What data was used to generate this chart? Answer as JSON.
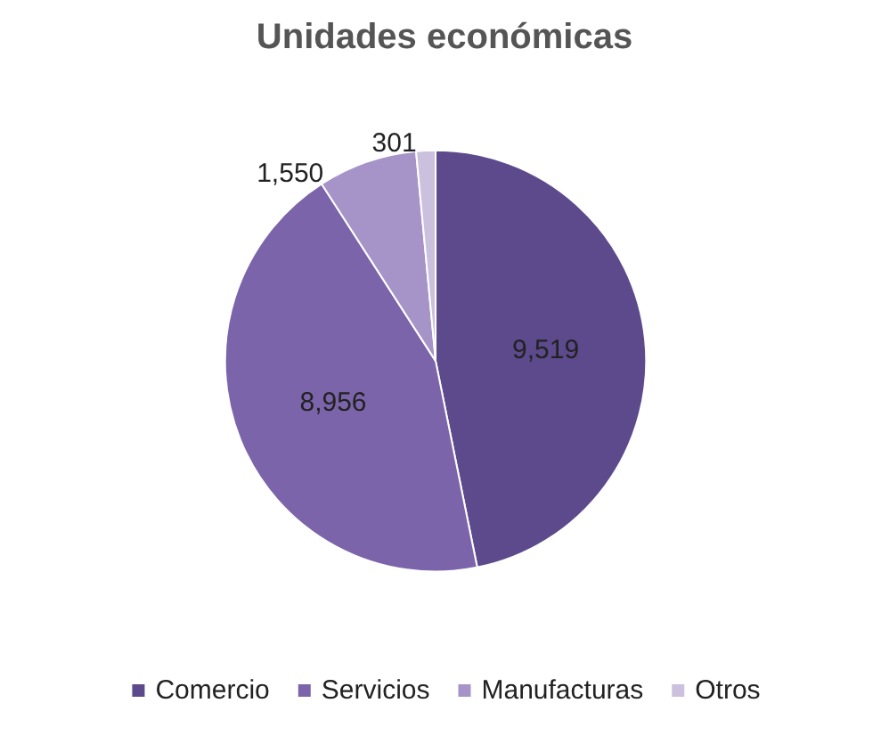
{
  "chart_data": {
    "type": "pie",
    "title": "Unidades económicas",
    "categories": [
      "Comercio",
      "Servicios",
      "Manufacturas",
      "Otros"
    ],
    "values": [
      9519,
      8956,
      1550,
      301
    ],
    "colors": [
      "#5c4a8c",
      "#7b64a9",
      "#a694c8",
      "#cbc0de"
    ],
    "value_labels": [
      "9,519",
      "8,956",
      "1,550",
      "301"
    ],
    "legend": "bottom"
  }
}
